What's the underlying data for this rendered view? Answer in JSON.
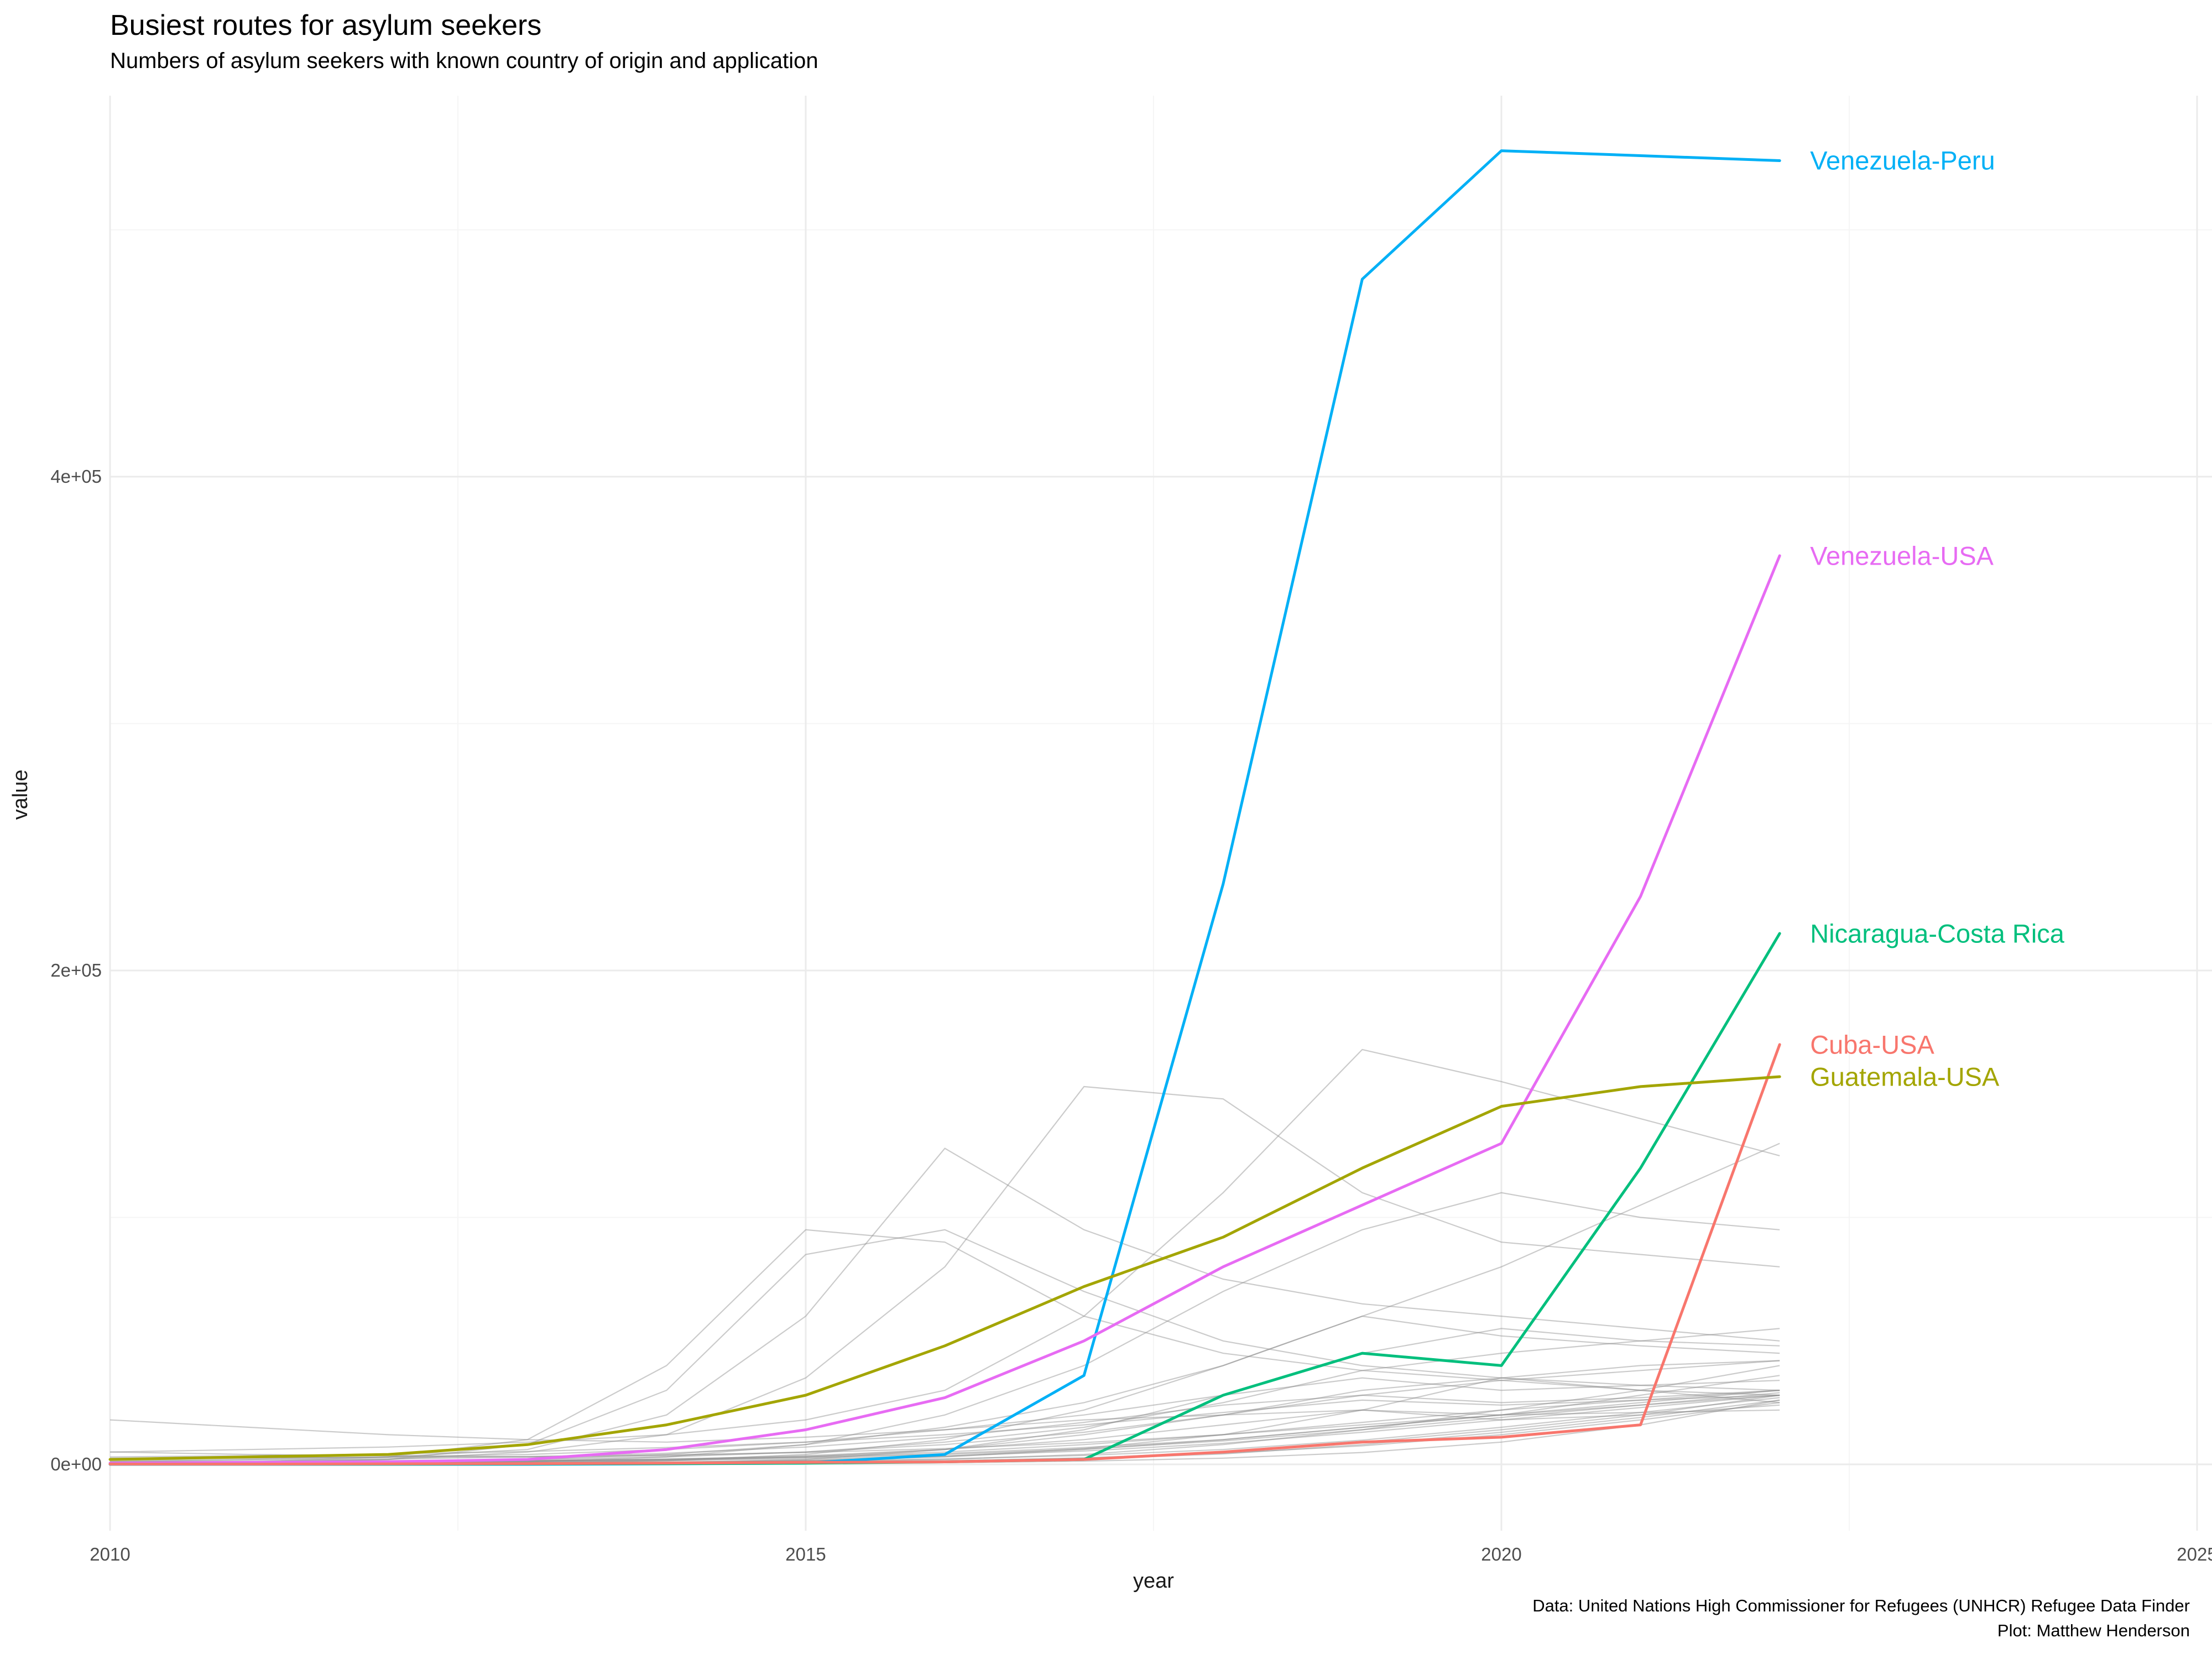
{
  "header": {
    "title": "Busiest routes for asylum seekers",
    "subtitle": "Numbers of asylum seekers with known country of origin and application"
  },
  "caption": {
    "line1": "Data: United Nations High Commissioner for Refugees (UNHCR) Refugee Data Finder",
    "line2": "Plot: Matthew Henderson"
  },
  "chart_data": {
    "type": "line",
    "title": "Busiest routes for asylum seekers",
    "subtitle": "Numbers of asylum seekers with known country of origin and application",
    "xlabel": "year",
    "ylabel": "value",
    "x_range": [
      2010,
      2025
    ],
    "y_range": [
      0,
      554000
    ],
    "grid": {
      "major_color": "#ebebeb",
      "minor_color": "#f5f5f5",
      "x_minor": [
        2012.5,
        2017.5,
        2022.5
      ],
      "y_minor": [
        100000,
        300000,
        500000
      ]
    },
    "x_ticks": [
      {
        "value": 2010,
        "label": "2010"
      },
      {
        "value": 2015,
        "label": "2015"
      },
      {
        "value": 2020,
        "label": "2020"
      },
      {
        "value": 2025,
        "label": "2025"
      }
    ],
    "y_ticks": [
      {
        "value": 0,
        "label": "0e+00"
      },
      {
        "value": 200000,
        "label": "2e+05"
      },
      {
        "value": 400000,
        "label": "4e+05"
      }
    ],
    "x": [
      2010,
      2011,
      2012,
      2013,
      2014,
      2015,
      2016,
      2017,
      2018,
      2019,
      2020,
      2021,
      2022
    ],
    "series": [
      {
        "name": "Venezuela-Peru",
        "color": "#00B0F6",
        "values": [
          0,
          0,
          0,
          0,
          200,
          500,
          4000,
          36000,
          235000,
          480000,
          532000,
          530000,
          528000
        ]
      },
      {
        "name": "Venezuela-USA",
        "color": "#E76BF3",
        "values": [
          500,
          800,
          1000,
          2000,
          6000,
          14000,
          27000,
          50000,
          80000,
          105000,
          130000,
          230000,
          368000
        ]
      },
      {
        "name": "Nicaragua-Costa Rica",
        "color": "#00BF7D",
        "values": [
          100,
          100,
          100,
          200,
          300,
          500,
          1000,
          2000,
          28000,
          45000,
          40000,
          120000,
          215000
        ]
      },
      {
        "name": "Cuba-USA",
        "color": "#F8766D",
        "values": [
          100,
          100,
          200,
          300,
          500,
          800,
          1000,
          2000,
          5000,
          9000,
          11000,
          16000,
          170000
        ]
      },
      {
        "name": "Guatemala-USA",
        "color": "#A3A500",
        "values": [
          2000,
          3000,
          4000,
          8000,
          16000,
          28000,
          48000,
          72000,
          92000,
          120000,
          145000,
          153000,
          157000
        ]
      }
    ],
    "background_series": {
      "color": "#8c8c8c",
      "opacity": 0.45,
      "values": [
        [
          18000,
          15000,
          12000,
          10000,
          9000,
          11000,
          14000,
          18000,
          20000,
          22000,
          20000,
          21000,
          22000
        ],
        [
          5000,
          6000,
          7000,
          9000,
          12000,
          18000,
          30000,
          60000,
          110000,
          168000,
          155000,
          140000,
          125000
        ],
        [
          1000,
          2000,
          3000,
          6000,
          20000,
          60000,
          128000,
          95000,
          75000,
          65000,
          60000,
          55000,
          50000
        ],
        [
          0,
          500,
          1000,
          2000,
          4000,
          8000,
          15000,
          25000,
          40000,
          60000,
          80000,
          105000,
          130000
        ],
        [
          500,
          1000,
          2000,
          5000,
          12000,
          35000,
          80000,
          153000,
          148000,
          110000,
          90000,
          85000,
          80000
        ],
        [
          200,
          300,
          500,
          1000,
          3000,
          8000,
          20000,
          40000,
          70000,
          95000,
          110000,
          100000,
          95000
        ],
        [
          1000,
          1200,
          1500,
          2000,
          3000,
          5000,
          9000,
          15000,
          25000,
          38000,
          45000,
          50000,
          55000
        ],
        [
          300,
          400,
          600,
          900,
          1500,
          3000,
          6000,
          12000,
          20000,
          30000,
          35000,
          40000,
          42000
        ],
        [
          2000,
          2500,
          3000,
          4000,
          6000,
          9000,
          14000,
          20000,
          28000,
          35000,
          30000,
          32000,
          34000
        ],
        [
          100,
          200,
          300,
          500,
          800,
          1500,
          3000,
          6000,
          10000,
          15000,
          20000,
          28000,
          36000
        ],
        [
          500,
          600,
          800,
          1200,
          2000,
          3500,
          6000,
          10000,
          16000,
          22000,
          18000,
          20000,
          24000
        ],
        [
          1500,
          1800,
          2200,
          3000,
          4500,
          7000,
          11000,
          17000,
          24000,
          28000,
          25000,
          27000,
          30000
        ],
        [
          100,
          150,
          200,
          300,
          500,
          1000,
          2000,
          4000,
          8000,
          14000,
          22000,
          30000,
          40000
        ],
        [
          50,
          80,
          120,
          200,
          350,
          600,
          1200,
          2500,
          5000,
          9000,
          14000,
          20000,
          28000
        ],
        [
          1000,
          1100,
          1300,
          1600,
          2200,
          3200,
          5000,
          8000,
          12000,
          17000,
          22000,
          26000,
          30000
        ],
        [
          3000,
          3500,
          4200,
          5200,
          6800,
          9000,
          12000,
          16000,
          21000,
          26000,
          24000,
          26000,
          28000
        ],
        [
          200,
          250,
          320,
          420,
          600,
          900,
          1500,
          2600,
          4500,
          7500,
          12000,
          18000,
          25000
        ],
        [
          800,
          900,
          1100,
          1400,
          1900,
          2700,
          4000,
          6200,
          9500,
          14000,
          19000,
          24000,
          29000
        ],
        [
          100,
          120,
          150,
          200,
          280,
          400,
          700,
          1300,
          2500,
          4800,
          9000,
          16000,
          26000
        ],
        [
          400,
          450,
          550,
          700,
          950,
          1400,
          2200,
          3600,
          6000,
          9800,
          15000,
          21000,
          27000
        ],
        [
          5000,
          4000,
          3500,
          3000,
          3500,
          5000,
          8000,
          13000,
          20000,
          28000,
          34000,
          38000,
          42000
        ],
        [
          0,
          0,
          0,
          0,
          500,
          2000,
          6000,
          14000,
          28000,
          45000,
          55000,
          50000,
          48000
        ],
        [
          0,
          0,
          0,
          500,
          1500,
          4000,
          10000,
          22000,
          40000,
          60000,
          52000,
          48000,
          45000
        ],
        [
          2500,
          2600,
          2800,
          3200,
          3800,
          4800,
          6400,
          8800,
          12000,
          16000,
          20000,
          24000,
          28000
        ],
        [
          600,
          700,
          850,
          1100,
          1500,
          2200,
          3400,
          5400,
          8500,
          13000,
          18000,
          23000,
          28000
        ],
        [
          150,
          180,
          230,
          310,
          450,
          700,
          1200,
          2200,
          4200,
          8000,
          13000,
          19000,
          26000
        ],
        [
          900,
          1000,
          1200,
          1500,
          2000,
          2900,
          4400,
          6800,
          10000,
          15000,
          20000,
          25000,
          30000
        ],
        [
          0,
          100,
          200,
          400,
          800,
          1600,
          3200,
          6400,
          12000,
          22000,
          35000,
          30000,
          25000
        ],
        [
          500,
          1000,
          3000,
          10000,
          40000,
          95000,
          90000,
          60000,
          45000,
          38000,
          34000,
          30000,
          28000
        ],
        [
          300,
          800,
          2000,
          8000,
          30000,
          85000,
          95000,
          70000,
          50000,
          40000,
          35000,
          32000,
          30000
        ]
      ]
    }
  }
}
